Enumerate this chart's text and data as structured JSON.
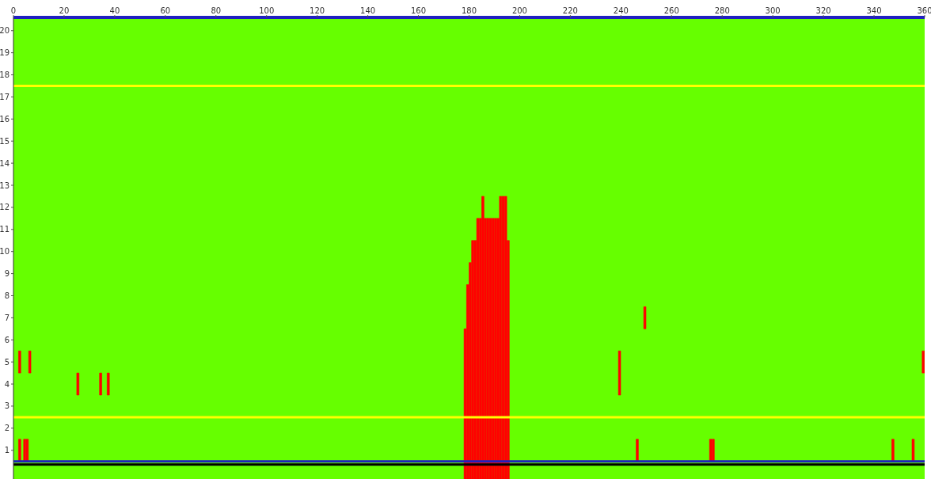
{
  "chart_data": {
    "type": "bar",
    "series": [
      {
        "color": "#ff0000",
        "x": [
          2.5,
          4.5,
          5.5,
          6.5,
          25.5,
          34.5,
          37.5,
          178.5,
          179.5,
          180.5,
          181.5,
          182.5,
          183.5,
          184.5,
          185.5,
          186.5,
          187.5,
          188.5,
          189.5,
          190.5,
          191.5,
          192.5,
          193.5,
          194.5,
          195.5,
          239.5,
          246.5,
          249.5,
          275.5,
          276.5,
          347.5,
          355.5,
          359.5
        ],
        "base": [
          0.5,
          0.5,
          0.5,
          4.5,
          3.5,
          3.5,
          3.5,
          -0.3,
          -0.3,
          -0.3,
          -0.3,
          -0.3,
          -0.3,
          -0.3,
          -0.3,
          -0.3,
          -0.3,
          -0.3,
          -0.3,
          -0.3,
          -0.3,
          -0.3,
          -0.3,
          -0.3,
          -0.3,
          3.5,
          0.5,
          6.5,
          0.5,
          0.5,
          0.5,
          0.5,
          4.5
        ],
        "values": [
          1,
          1,
          1,
          1,
          1,
          1,
          1,
          6.8,
          8.8,
          9.8,
          10.8,
          10.8,
          11.8,
          11.8,
          12.8,
          11.8,
          11.8,
          11.8,
          11.8,
          11.8,
          11.8,
          12.8,
          12.8,
          12.8,
          10.8,
          2,
          1,
          1,
          1,
          1,
          1,
          1,
          1
        ]
      },
      {
        "color": "#ff0000",
        "x": [
          2.5
        ],
        "base": [
          4.5
        ],
        "values": [
          1
        ]
      }
    ],
    "xlim": [
      0,
      360
    ],
    "xticks": [
      0,
      20,
      40,
      60,
      80,
      100,
      120,
      140,
      160,
      180,
      200,
      220,
      240,
      260,
      280,
      300,
      320,
      340,
      360
    ],
    "ylim": [
      -0.3,
      20.6
    ],
    "yticks": [
      1,
      2,
      3,
      4,
      5,
      6,
      7,
      8,
      9,
      10,
      11,
      12,
      13,
      14,
      15,
      16,
      17,
      18,
      19,
      20
    ],
    "ref_lines": [
      {
        "axis": "y",
        "value": 17.5,
        "color": "#ffff00"
      },
      {
        "axis": "y",
        "value": 2.5,
        "color": "#ffff00"
      },
      {
        "axis": "y",
        "value": 0.5,
        "color": "#2020c0"
      },
      {
        "axis": "y",
        "value": 0.35,
        "color": "#000000"
      }
    ],
    "grid": false
  }
}
